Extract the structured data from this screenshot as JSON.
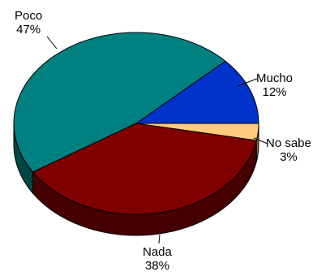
{
  "chart_data": {
    "type": "pie",
    "style": "3d",
    "slices": [
      {
        "label": "Mucho",
        "percent_label": "12%",
        "value": 12,
        "color": "#0033CC"
      },
      {
        "label": "No sabe",
        "percent_label": "3%",
        "value": 3,
        "color": "#FFCC80"
      },
      {
        "label": "Nada",
        "percent_label": "38%",
        "value": 38,
        "color": "#800000"
      },
      {
        "label": "Poco",
        "percent_label": "47%",
        "value": 47,
        "color": "#008080"
      }
    ]
  }
}
